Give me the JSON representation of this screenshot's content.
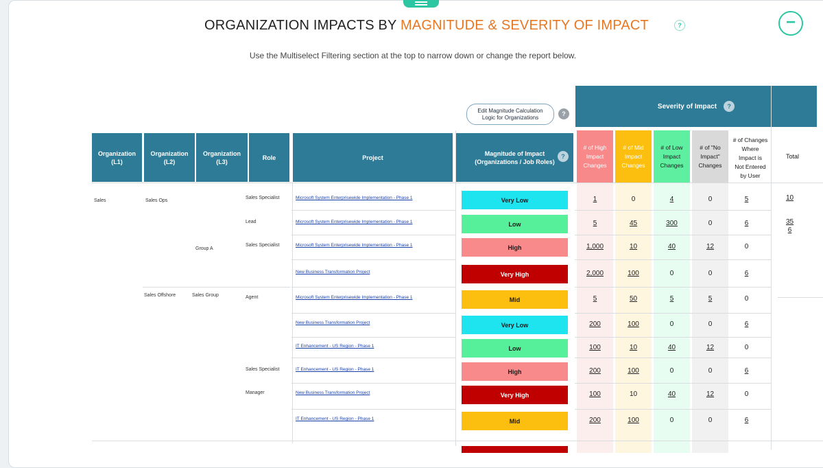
{
  "title": {
    "prefix": "ORGANIZATION IMPACTS BY ",
    "accent": "MAGNITUDE & SEVERITY OF IMPACT",
    "help": "?"
  },
  "subtitle": "Use the Multiselect Filtering section at the top to narrow down or change the report below.",
  "collapse_label": "−",
  "edit_button": {
    "line1": "Edit Magnitude Calculation",
    "line2": "Logic for Organizations",
    "help": "?"
  },
  "headers": {
    "org_l1": [
      "Organization",
      "(L1)"
    ],
    "org_l2": [
      "Organization",
      "(L2)"
    ],
    "org_l3": [
      "Organization",
      "(L3)"
    ],
    "role": "Role",
    "project": "Project",
    "magnitude": [
      "Magnitude of Impact",
      "(Organizations / Job Roles)"
    ],
    "magnitude_help": "?",
    "severity": "Severity of Impact",
    "severity_help": "?",
    "high": [
      "# of High",
      "Impact",
      "Changes"
    ],
    "mid": [
      "# of Mid",
      "Impact",
      "Changes"
    ],
    "low": [
      "# of Low",
      "Impact",
      "Changes"
    ],
    "no": [
      "# of \"No",
      "Impact\"",
      "Changes"
    ],
    "not_entered": [
      "# of Changes",
      "Where",
      "Impact is",
      "Not Entered",
      "by User"
    ],
    "total": "Total"
  },
  "colors": {
    "header": "#2d7b96",
    "accent": "#e87722",
    "brand": "#2dc6a2",
    "high_col": "#f8898a",
    "mid_col": "#fcbf10",
    "low_col": "#5ef0a0",
    "no_col": "#d9d9d9"
  },
  "org": {
    "l1": "Sales",
    "l2_a": "Sales Ops",
    "l2_b": "Sales Offshore",
    "l3_a": "Group A",
    "l3_b": "Sales Group"
  },
  "rows": [
    {
      "role": "Sales Specialist",
      "project": "Microsoft System Enterprisewide Implementation - Phase 1",
      "magnitude": "Very Low",
      "mag_color": "#1de4ef",
      "mag_text": "#1a1a1a",
      "high": "1",
      "mid": "0",
      "low": "4",
      "no": "0",
      "ne": "5",
      "total": "10"
    },
    {
      "role": "Lead",
      "project": "Microsoft System Enterprisewide Implementation - Phase 1",
      "magnitude": "Low",
      "mag_color": "#57f09a",
      "mag_text": "#1a1a1a",
      "high": "5",
      "mid": "45",
      "low": "300",
      "no": "0",
      "ne": "6",
      "total": "35\n6"
    },
    {
      "role": "Sales Specialist",
      "project": "Microsoft System Enterprisewide Implementation - Phase 1",
      "magnitude": "High",
      "mag_color": "#f98a8b",
      "mag_text": "#1a1a1a",
      "high": "1,000",
      "mid": "10",
      "low": "40",
      "no": "12",
      "ne": "0",
      "total": ""
    },
    {
      "role": "",
      "project": "New Business Transformation Project",
      "magnitude": "Very High",
      "mag_color": "#c00000",
      "mag_text": "#ffffff",
      "high": "2,000",
      "mid": "100",
      "low": "0",
      "no": "0",
      "ne": "6",
      "total": ""
    },
    {
      "role": "Agent",
      "project": "Microsoft System Enterprisewide Implementation - Phase 1",
      "magnitude": "Mid",
      "mag_color": "#fcbf10",
      "mag_text": "#1a1a1a",
      "high": "5",
      "mid": "50",
      "low": "5",
      "no": "5",
      "ne": "0",
      "total": ""
    },
    {
      "role": "",
      "project": "New Business Transformation Project",
      "magnitude": "Very Low",
      "mag_color": "#1de4ef",
      "mag_text": "#1a1a1a",
      "high": "200",
      "mid": "100",
      "low": "0",
      "no": "0",
      "ne": "6",
      "total": ""
    },
    {
      "role": "",
      "project": "IT Enhancement - US Region - Phase 1",
      "magnitude": "Low",
      "mag_color": "#57f09a",
      "mag_text": "#1a1a1a",
      "high": "100",
      "mid": "10",
      "low": "40",
      "no": "12",
      "ne": "0",
      "total": ""
    },
    {
      "role": "Sales Specialist",
      "project": "IT Enhancement - US Region - Phase 1",
      "magnitude": "High",
      "mag_color": "#f98a8b",
      "mag_text": "#1a1a1a",
      "high": "200",
      "mid": "100",
      "low": "0",
      "no": "0",
      "ne": "6",
      "total": ""
    },
    {
      "role": "Manager",
      "project": "New Business Transformation Project",
      "magnitude": "Very High",
      "mag_color": "#c00000",
      "mag_text": "#ffffff",
      "high": "100",
      "mid": "10",
      "low": "40",
      "no": "12",
      "ne": "0",
      "total": ""
    },
    {
      "role": "",
      "project": "IT Enhancement - US Region - Phase 1",
      "magnitude": "Mid",
      "mag_color": "#fcbf10",
      "mag_text": "#1a1a1a",
      "high": "200",
      "mid": "100",
      "low": "0",
      "no": "0",
      "ne": "6",
      "total": ""
    }
  ]
}
